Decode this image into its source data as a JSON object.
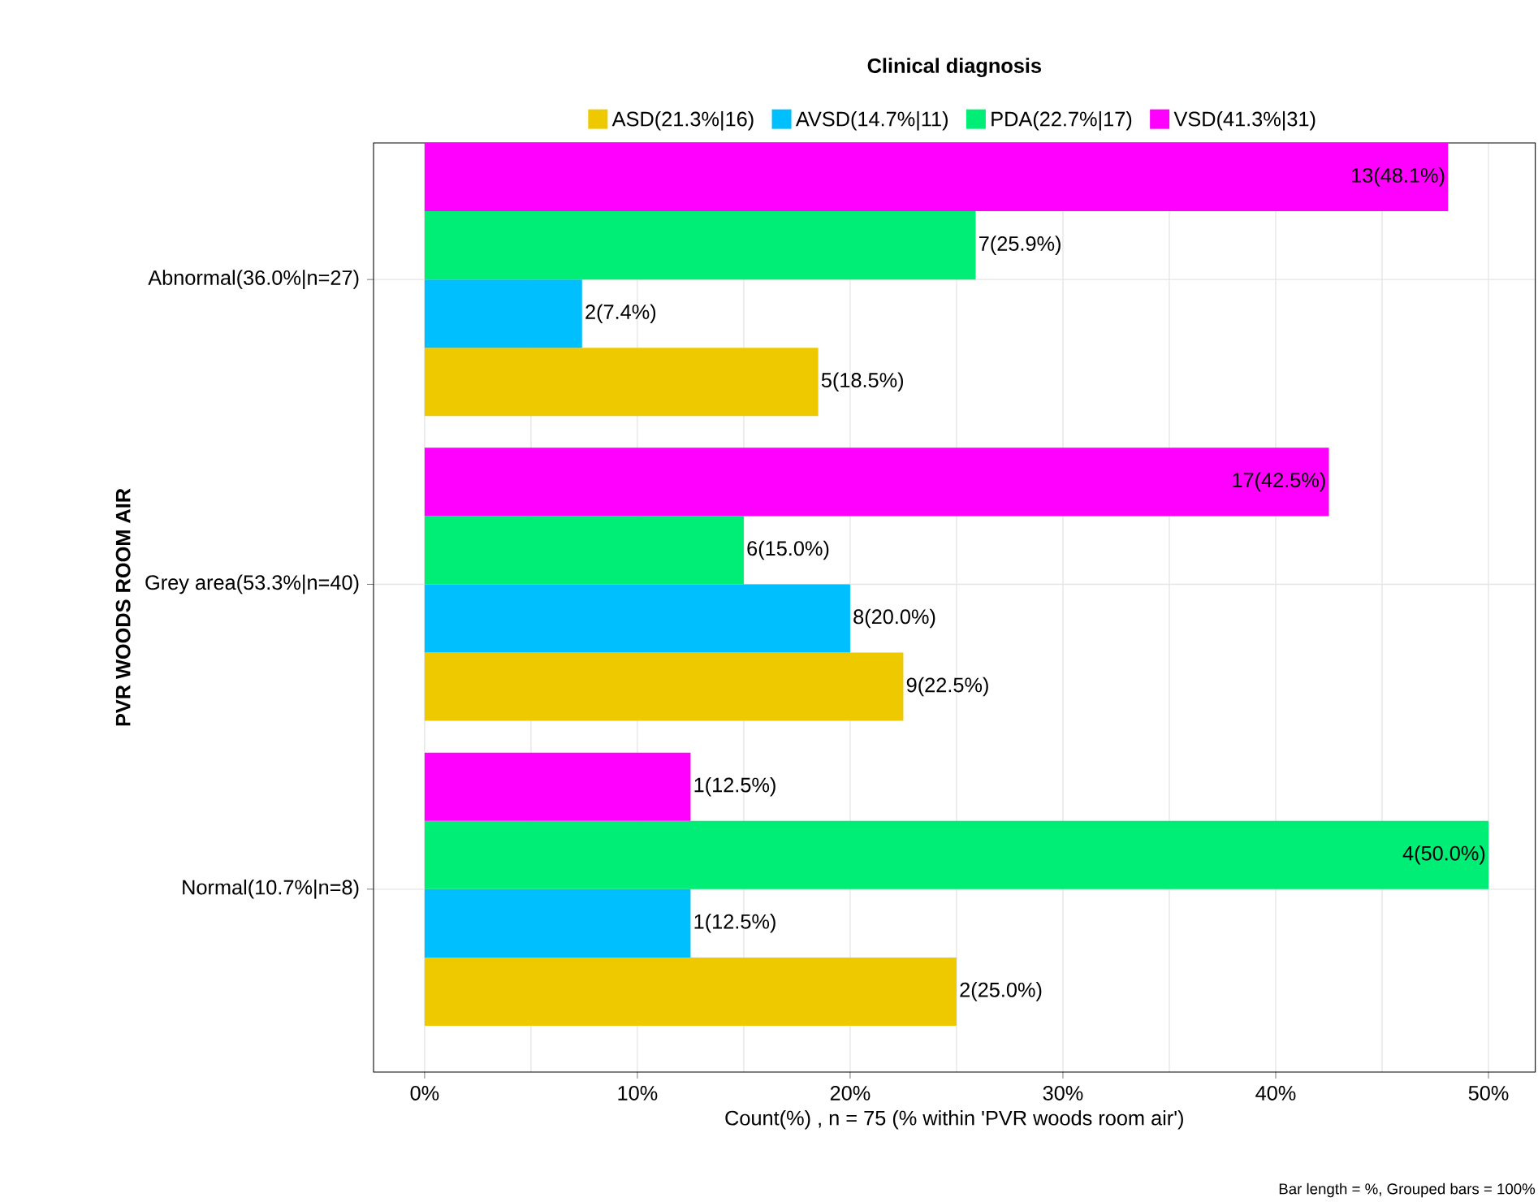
{
  "chart_data": {
    "type": "bar",
    "orientation": "horizontal",
    "legend_title": "Clinical diagnosis",
    "xlabel": "Count(%) , n = 75 (% within 'PVR woods room air')",
    "ylabel": "PVR WOODS ROOM AIR",
    "categories": [
      "Abnormal(36.0%|n=27)",
      "Grey area(53.3%|n=40)",
      "Normal(10.7%|n=8)"
    ],
    "series": [
      {
        "name": "ASD(21.3%|16)",
        "color": "#eec900",
        "values": [
          18.5,
          22.5,
          25.0
        ],
        "value_labels": [
          "5(18.5%)",
          "9(22.5%)",
          "2(25.0%)"
        ]
      },
      {
        "name": "AVSD(14.7%|11)",
        "color": "#00bfff",
        "values": [
          7.4,
          20.0,
          12.5
        ],
        "value_labels": [
          "2(7.4%)",
          "8(20.0%)",
          "1(12.5%)"
        ]
      },
      {
        "name": "PDA(22.7%|17)",
        "color": "#00ee76",
        "values": [
          25.9,
          15.0,
          50.0
        ],
        "value_labels": [
          "7(25.9%)",
          "6(15.0%)",
          "4(50.0%)"
        ]
      },
      {
        "name": "VSD(41.3%|31)",
        "color": "#ff00ff",
        "values": [
          48.1,
          42.5,
          12.5
        ],
        "value_labels": [
          "13(48.1%)",
          "17(42.5%)",
          "1(12.5%)"
        ]
      }
    ],
    "xlim": [
      -2.4,
      52.2
    ],
    "xticks": [
      {
        "value": 0,
        "label": "0%"
      },
      {
        "value": 10,
        "label": "10%"
      },
      {
        "value": 20,
        "label": "20%"
      },
      {
        "value": 30,
        "label": "30%"
      },
      {
        "value": 40,
        "label": "40%"
      },
      {
        "value": 50,
        "label": "50%"
      }
    ],
    "grid": true,
    "legend": "top",
    "annotations": [
      "Bar length = %, Grouped bars = 100%"
    ]
  }
}
